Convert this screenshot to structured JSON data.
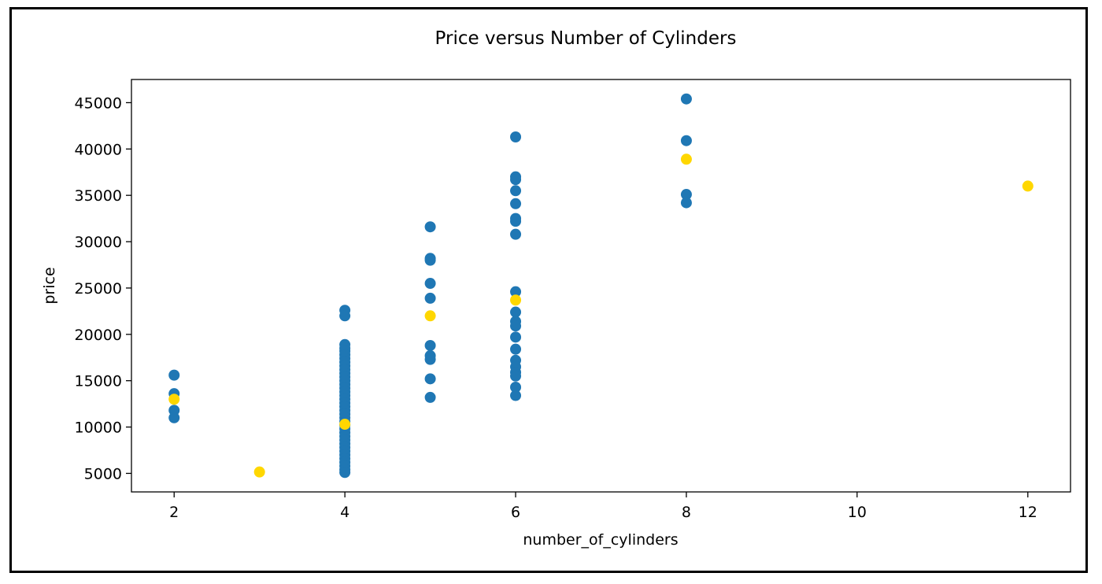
{
  "chart_data": {
    "type": "scatter",
    "title": "Price versus Number of Cylinders",
    "xlabel": "number_of_cylinders",
    "ylabel": "price",
    "xlim": [
      1.5,
      12.5
    ],
    "ylim": [
      3000,
      47500
    ],
    "xticks": [
      2,
      4,
      6,
      8,
      10,
      12
    ],
    "yticks": [
      5000,
      10000,
      15000,
      20000,
      25000,
      30000,
      35000,
      40000,
      45000
    ],
    "grid": false,
    "series": [
      {
        "color": "#1f77b4",
        "points": [
          [
            2,
            15600
          ],
          [
            2,
            13600
          ],
          [
            2,
            11800
          ],
          [
            2,
            11000
          ],
          [
            4,
            22600
          ],
          [
            4,
            22000
          ],
          [
            4,
            18900
          ],
          [
            4,
            18500
          ],
          [
            4,
            18200
          ],
          [
            4,
            17800
          ],
          [
            4,
            17400
          ],
          [
            4,
            17000
          ],
          [
            4,
            16600
          ],
          [
            4,
            16200
          ],
          [
            4,
            15800
          ],
          [
            4,
            15400
          ],
          [
            4,
            15000
          ],
          [
            4,
            14600
          ],
          [
            4,
            14200
          ],
          [
            4,
            13800
          ],
          [
            4,
            13400
          ],
          [
            4,
            13000
          ],
          [
            4,
            12600
          ],
          [
            4,
            12200
          ],
          [
            4,
            11800
          ],
          [
            4,
            11400
          ],
          [
            4,
            11000
          ],
          [
            4,
            10600
          ],
          [
            4,
            10200
          ],
          [
            4,
            9800
          ],
          [
            4,
            9400
          ],
          [
            4,
            9000
          ],
          [
            4,
            8600
          ],
          [
            4,
            8200
          ],
          [
            4,
            7800
          ],
          [
            4,
            7400
          ],
          [
            4,
            7000
          ],
          [
            4,
            6600
          ],
          [
            4,
            6200
          ],
          [
            4,
            5800
          ],
          [
            4,
            5400
          ],
          [
            4,
            5100
          ],
          [
            5,
            31600
          ],
          [
            5,
            28200
          ],
          [
            5,
            28000
          ],
          [
            5,
            25500
          ],
          [
            5,
            23900
          ],
          [
            5,
            18800
          ],
          [
            5,
            17700
          ],
          [
            5,
            17300
          ],
          [
            5,
            15200
          ],
          [
            5,
            13200
          ],
          [
            6,
            41300
          ],
          [
            6,
            37000
          ],
          [
            6,
            36700
          ],
          [
            6,
            35500
          ],
          [
            6,
            34100
          ],
          [
            6,
            32500
          ],
          [
            6,
            32200
          ],
          [
            6,
            30800
          ],
          [
            6,
            24600
          ],
          [
            6,
            22400
          ],
          [
            6,
            21400
          ],
          [
            6,
            20900
          ],
          [
            6,
            19700
          ],
          [
            6,
            18400
          ],
          [
            6,
            17200
          ],
          [
            6,
            16500
          ],
          [
            6,
            15900
          ],
          [
            6,
            15500
          ],
          [
            6,
            14300
          ],
          [
            6,
            13400
          ],
          [
            8,
            45400
          ],
          [
            8,
            40900
          ],
          [
            8,
            35100
          ],
          [
            8,
            34200
          ]
        ]
      },
      {
        "color": "#ffd700",
        "points": [
          [
            2,
            13000
          ],
          [
            3,
            5150
          ],
          [
            4,
            10300
          ],
          [
            5,
            22000
          ],
          [
            6,
            23700
          ],
          [
            8,
            38900
          ],
          [
            12,
            36000
          ]
        ]
      }
    ]
  }
}
